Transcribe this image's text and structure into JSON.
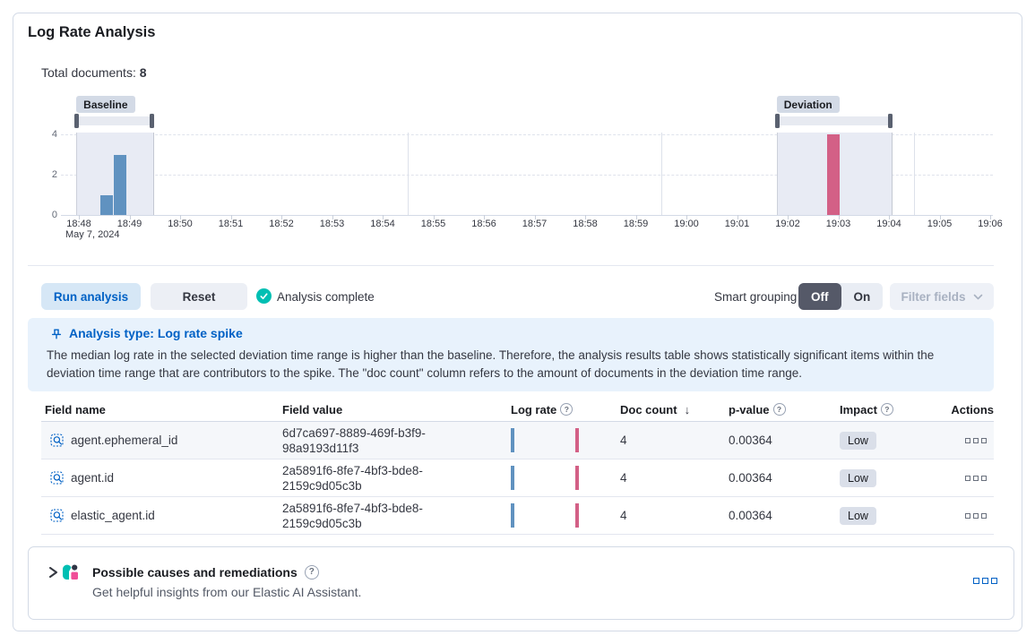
{
  "colors": {
    "primary": "#0061c5",
    "success": "#00bfb3",
    "baseline_bar": "#6092c0",
    "deviation_bar": "#d36086"
  },
  "header": {
    "title": "Log Rate Analysis"
  },
  "summary": {
    "label": "Total documents:",
    "value": "8"
  },
  "chart_data": {
    "type": "bar",
    "title": "",
    "x_axis": {
      "date_label": "May 7, 2024",
      "ticks": [
        "18:48",
        "18:49",
        "18:50",
        "18:51",
        "18:52",
        "18:53",
        "18:54",
        "18:55",
        "18:56",
        "18:57",
        "18:58",
        "18:59",
        "19:00",
        "19:01",
        "19:02",
        "19:03",
        "19:04",
        "19:05",
        "19:06"
      ]
    },
    "y_axis": {
      "ticks": [
        0,
        2,
        4
      ],
      "max": 4
    },
    "series": [
      {
        "name": "Baseline",
        "color": "#6092c0",
        "points": [
          {
            "time": "18:48:26",
            "value": 1
          },
          {
            "time": "18:48:41",
            "value": 3
          }
        ]
      },
      {
        "name": "Deviation",
        "color": "#d36086",
        "points": [
          {
            "time": "19:02:47",
            "value": 4
          }
        ]
      }
    ],
    "windows": [
      {
        "label": "Baseline",
        "start": "18:47:57",
        "end": "18:49:27"
      },
      {
        "label": "Deviation",
        "start": "19:01:47",
        "end": "19:04:02"
      }
    ],
    "v_gridlines": [
      "18:54:30",
      "18:59:30",
      "19:04:30"
    ],
    "total_documents": 8
  },
  "controls": {
    "run_button": "Run analysis",
    "reset_button": "Reset",
    "status": "Analysis complete",
    "smart_grouping_label": "Smart grouping",
    "toggle": {
      "options": [
        "Off",
        "On"
      ],
      "selected": "Off"
    },
    "filter_fields_button": "Filter fields"
  },
  "callout": {
    "title": "Analysis type: Log rate spike",
    "body": "The median log rate in the selected deviation time range is higher than the baseline. Therefore, the analysis results table shows statistically significant items within the deviation time range that are contributors to the spike. The \"doc count\" column refers to the amount of documents in the deviation time range."
  },
  "table": {
    "columns": [
      {
        "label": "Field name"
      },
      {
        "label": "Field value"
      },
      {
        "label": "Log rate",
        "info": true
      },
      {
        "label": "Doc count",
        "sort": "desc"
      },
      {
        "label": "p-value",
        "info": true
      },
      {
        "label": "Impact",
        "info": true
      },
      {
        "label": "Actions",
        "align": "right"
      }
    ],
    "rows": [
      {
        "field_name": "agent.ephemeral_id",
        "field_value": "6d7ca697-8889-469f-b3f9-98a9193d11f3",
        "doc_count": "4",
        "p_value": "0.00364",
        "impact": "Low",
        "highlighted": true
      },
      {
        "field_name": "agent.id",
        "field_value": "2a5891f6-8fe7-4bf3-bde8-2159c9d05c3b",
        "doc_count": "4",
        "p_value": "0.00364",
        "impact": "Low",
        "highlighted": false
      },
      {
        "field_name": "elastic_agent.id",
        "field_value": "2a5891f6-8fe7-4bf3-bde8-2159c9d05c3b",
        "doc_count": "4",
        "p_value": "0.00364",
        "impact": "Low",
        "highlighted": false
      }
    ]
  },
  "accordion": {
    "title": "Possible causes and remediations",
    "subtitle": "Get helpful insights from our Elastic AI Assistant."
  }
}
